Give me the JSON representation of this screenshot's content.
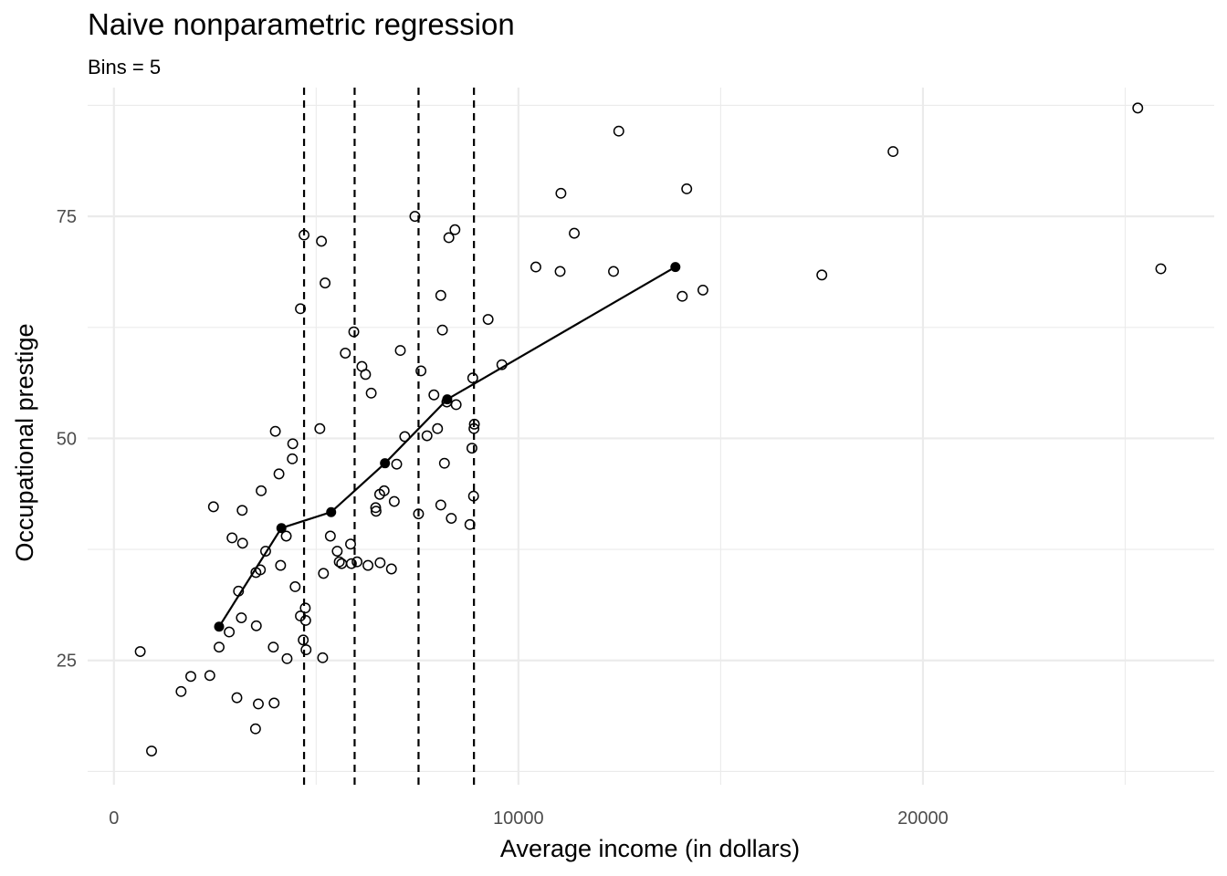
{
  "chart_data": {
    "type": "scatter",
    "title": "Naive nonparametric regression",
    "subtitle": "Bins = 5",
    "xlabel": "Average income (in dollars)",
    "ylabel": "Occupational prestige",
    "xlim": [
      -650,
      27200
    ],
    "ylim": [
      11,
      89.5
    ],
    "x_ticks": [
      0,
      10000,
      20000
    ],
    "x_tick_labels": [
      "0",
      "10000",
      "20000"
    ],
    "y_ticks": [
      25,
      50,
      75
    ],
    "y_tick_labels": [
      "25",
      "50",
      "75"
    ],
    "grid": true,
    "legend": "none",
    "colors": {
      "points": "#000000",
      "grid": "#ebebeb",
      "background": "#ffffff"
    },
    "bin_breaks": [
      4700,
      5950,
      7530,
      8900
    ],
    "points": [
      [
        650,
        26
      ],
      [
        930,
        14.8
      ],
      [
        1660,
        21.5
      ],
      [
        1900,
        23.2
      ],
      [
        2370,
        23.3
      ],
      [
        2460,
        42.3
      ],
      [
        2600,
        26.5
      ],
      [
        2850,
        28.2
      ],
      [
        2920,
        38.8
      ],
      [
        3040,
        20.8
      ],
      [
        3080,
        32.8
      ],
      [
        3150,
        29.8
      ],
      [
        3170,
        41.9
      ],
      [
        3180,
        38.2
      ],
      [
        3500,
        17.3
      ],
      [
        3510,
        34.9
      ],
      [
        3520,
        28.9
      ],
      [
        3570,
        20.1
      ],
      [
        3620,
        35.2
      ],
      [
        3640,
        44.1
      ],
      [
        3750,
        37.3
      ],
      [
        3940,
        26.5
      ],
      [
        3960,
        20.2
      ],
      [
        3990,
        50.8
      ],
      [
        4080,
        46
      ],
      [
        4120,
        35.7
      ],
      [
        4260,
        39
      ],
      [
        4280,
        25.2
      ],
      [
        4410,
        47.7
      ],
      [
        4420,
        49.4
      ],
      [
        4480,
        33.3
      ],
      [
        4610,
        30
      ],
      [
        4610,
        64.6
      ],
      [
        4680,
        27.3
      ],
      [
        4700,
        72.9
      ],
      [
        4740,
        29.5
      ],
      [
        4730,
        30.9
      ],
      [
        4750,
        26.2
      ],
      [
        5090,
        51.1
      ],
      [
        5130,
        72.2
      ],
      [
        5160,
        25.3
      ],
      [
        5180,
        34.8
      ],
      [
        5220,
        67.5
      ],
      [
        5350,
        39
      ],
      [
        5520,
        37.3
      ],
      [
        5570,
        36.1
      ],
      [
        5630,
        35.9
      ],
      [
        5720,
        59.6
      ],
      [
        5850,
        38.1
      ],
      [
        5870,
        35.9
      ],
      [
        5930,
        62
      ],
      [
        6010,
        36.1
      ],
      [
        6130,
        58.1
      ],
      [
        6220,
        57.2
      ],
      [
        6280,
        35.7
      ],
      [
        6360,
        55.1
      ],
      [
        6470,
        42.2
      ],
      [
        6480,
        41.8
      ],
      [
        6570,
        43.7
      ],
      [
        6580,
        36
      ],
      [
        6680,
        44.1
      ],
      [
        6860,
        35.3
      ],
      [
        6930,
        42.9
      ],
      [
        6990,
        47.1
      ],
      [
        7080,
        59.9
      ],
      [
        7190,
        50.2
      ],
      [
        7440,
        75
      ],
      [
        7530,
        41.5
      ],
      [
        7590,
        57.6
      ],
      [
        7740,
        50.3
      ],
      [
        7910,
        54.9
      ],
      [
        8000,
        51.1
      ],
      [
        8080,
        42.5
      ],
      [
        8080,
        66.1
      ],
      [
        8120,
        62.2
      ],
      [
        8170,
        47.2
      ],
      [
        8230,
        54.1
      ],
      [
        8280,
        72.6
      ],
      [
        8340,
        41
      ],
      [
        8430,
        73.5
      ],
      [
        8460,
        53.8
      ],
      [
        8800,
        40.3
      ],
      [
        8850,
        48.9
      ],
      [
        8870,
        56.8
      ],
      [
        8890,
        43.5
      ],
      [
        8900,
        51.1
      ],
      [
        8910,
        51.6
      ],
      [
        9250,
        63.4
      ],
      [
        9590,
        58.3
      ],
      [
        10430,
        69.3
      ],
      [
        11030,
        68.8
      ],
      [
        11050,
        77.6
      ],
      [
        11380,
        73.1
      ],
      [
        12350,
        68.8
      ],
      [
        12480,
        84.6
      ],
      [
        14050,
        66
      ],
      [
        14160,
        78.1
      ],
      [
        14560,
        66.7
      ],
      [
        17500,
        68.4
      ],
      [
        19260,
        82.3
      ],
      [
        25310,
        87.2
      ],
      [
        25880,
        69.1
      ]
    ],
    "bin_means": [
      [
        2600,
        28.8
      ],
      [
        4140,
        39.9
      ],
      [
        5370,
        41.7
      ],
      [
        6700,
        47.2
      ],
      [
        8240,
        54.4
      ],
      [
        13880,
        69.3
      ]
    ]
  }
}
